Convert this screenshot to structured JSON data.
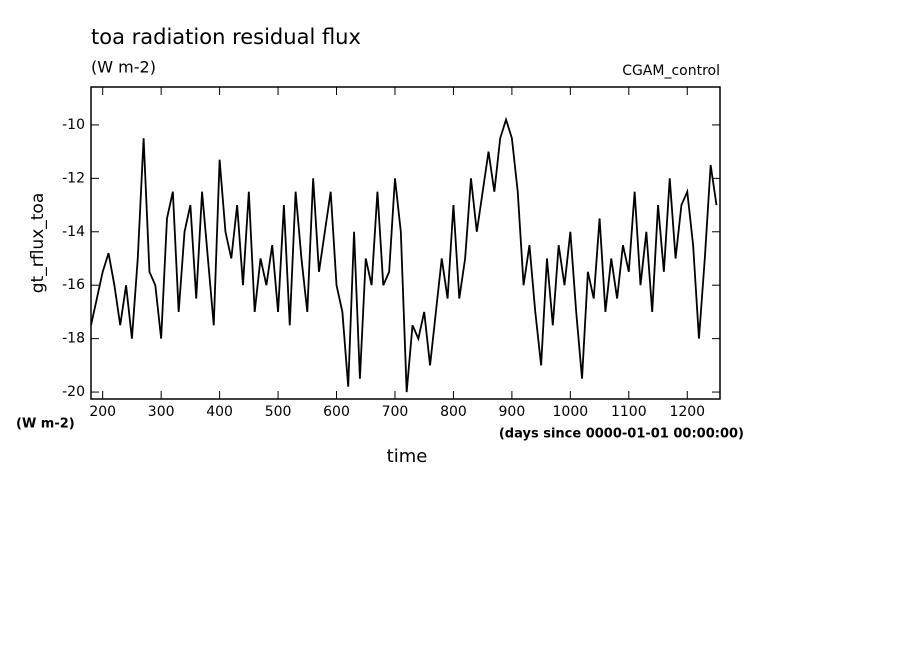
{
  "chart_data": {
    "type": "line",
    "title": "toa radiation residual flux",
    "units": "(W m-2)",
    "run_label": "CGAM_control",
    "ylabel": "gt_rflux_toa",
    "yunits": "(W m-2)",
    "xlabel": "time",
    "xunits": "(days since 0000-01-01 00:00:00)",
    "xlim": [
      180,
      1256
    ],
    "ylim": [
      -20.26,
      -8.58
    ],
    "xticks": [
      200,
      300,
      400,
      500,
      600,
      700,
      800,
      900,
      1000,
      1100,
      1200
    ],
    "yticks": [
      -20,
      -18,
      -16,
      -14,
      -12,
      -10
    ],
    "x": [
      180,
      190,
      200,
      210,
      220,
      230,
      240,
      250,
      260,
      270,
      280,
      290,
      300,
      310,
      320,
      330,
      340,
      350,
      360,
      370,
      380,
      390,
      400,
      410,
      420,
      430,
      440,
      450,
      460,
      470,
      480,
      490,
      500,
      510,
      520,
      530,
      540,
      550,
      560,
      570,
      580,
      590,
      600,
      610,
      620,
      630,
      640,
      650,
      660,
      670,
      680,
      690,
      700,
      710,
      720,
      730,
      740,
      750,
      760,
      770,
      780,
      790,
      800,
      810,
      820,
      830,
      840,
      850,
      860,
      870,
      880,
      890,
      900,
      910,
      920,
      930,
      940,
      950,
      960,
      970,
      980,
      990,
      1000,
      1010,
      1020,
      1030,
      1040,
      1050,
      1060,
      1070,
      1080,
      1090,
      1100,
      1110,
      1120,
      1130,
      1140,
      1150,
      1160,
      1170,
      1180,
      1190,
      1200,
      1210,
      1220,
      1230,
      1240,
      1250
    ],
    "series": [
      {
        "color": "#000000",
        "values": [
          -17.5,
          -16.5,
          -15.5,
          -14.8,
          -16,
          -17.5,
          -16,
          -18,
          -15,
          -10.5,
          -15.5,
          -16,
          -18,
          -13.5,
          -12.5,
          -17,
          -14,
          -13,
          -16.5,
          -12.5,
          -15,
          -17.5,
          -11.3,
          -14,
          -15,
          -13,
          -16,
          -12.5,
          -17,
          -15,
          -16,
          -14.5,
          -17,
          -13,
          -17.5,
          -12.5,
          -15,
          -17,
          -12,
          -15.5,
          -14,
          -12.5,
          -16,
          -17,
          -19.8,
          -14,
          -19.5,
          -15,
          -16,
          -12.5,
          -16,
          -15.5,
          -12,
          -14,
          -20,
          -17.5,
          -18,
          -17,
          -19,
          -17,
          -15,
          -16.5,
          -13,
          -16.5,
          -15,
          -12,
          -14,
          -12.5,
          -11,
          -12.5,
          -10.5,
          -9.8,
          -10.5,
          -12.5,
          -16,
          -14.5,
          -17,
          -19,
          -15,
          -17.5,
          -14.5,
          -16,
          -14,
          -17,
          -19.5,
          -15.5,
          -16.5,
          -13.5,
          -17,
          -15,
          -16.5,
          -14.5,
          -15.5,
          -12.5,
          -16,
          -14,
          -17,
          -13,
          -15.5,
          -12,
          -15,
          -13,
          -12.5,
          -14.5,
          -18,
          -15,
          -11.5,
          -13
        ]
      }
    ]
  }
}
